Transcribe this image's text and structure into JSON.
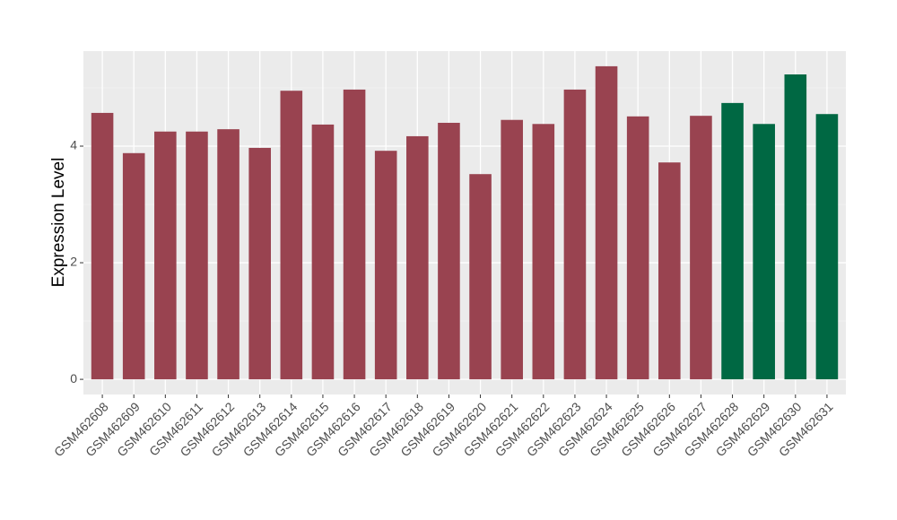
{
  "chart_data": {
    "type": "bar",
    "y_label": "Expression Level",
    "categories": [
      "GSM462608",
      "GSM462609",
      "GSM462610",
      "GSM462611",
      "GSM462612",
      "GSM462613",
      "GSM462614",
      "GSM462615",
      "GSM462616",
      "GSM462617",
      "GSM462618",
      "GSM462619",
      "GSM462620",
      "GSM462621",
      "GSM462622",
      "GSM462623",
      "GSM462624",
      "GSM462625",
      "GSM462626",
      "GSM462627",
      "GSM462628",
      "GSM462629",
      "GSM462630",
      "GSM462631"
    ],
    "values": [
      4.57,
      3.88,
      4.25,
      4.25,
      4.29,
      3.97,
      4.95,
      4.37,
      4.97,
      3.92,
      4.17,
      4.4,
      3.52,
      4.45,
      4.38,
      4.97,
      5.37,
      4.51,
      3.72,
      4.52,
      4.74,
      4.38,
      5.23,
      4.55
    ],
    "colors": [
      "#994350",
      "#994350",
      "#994350",
      "#994350",
      "#994350",
      "#994350",
      "#994350",
      "#994350",
      "#994350",
      "#994350",
      "#994350",
      "#994350",
      "#994350",
      "#994350",
      "#994350",
      "#994350",
      "#994350",
      "#994350",
      "#994350",
      "#994350",
      "#006843",
      "#006843",
      "#006843",
      "#006843"
    ],
    "ylim": [
      -0.26,
      5.63
    ],
    "yticks": [
      0,
      2,
      4
    ],
    "grid": true
  }
}
